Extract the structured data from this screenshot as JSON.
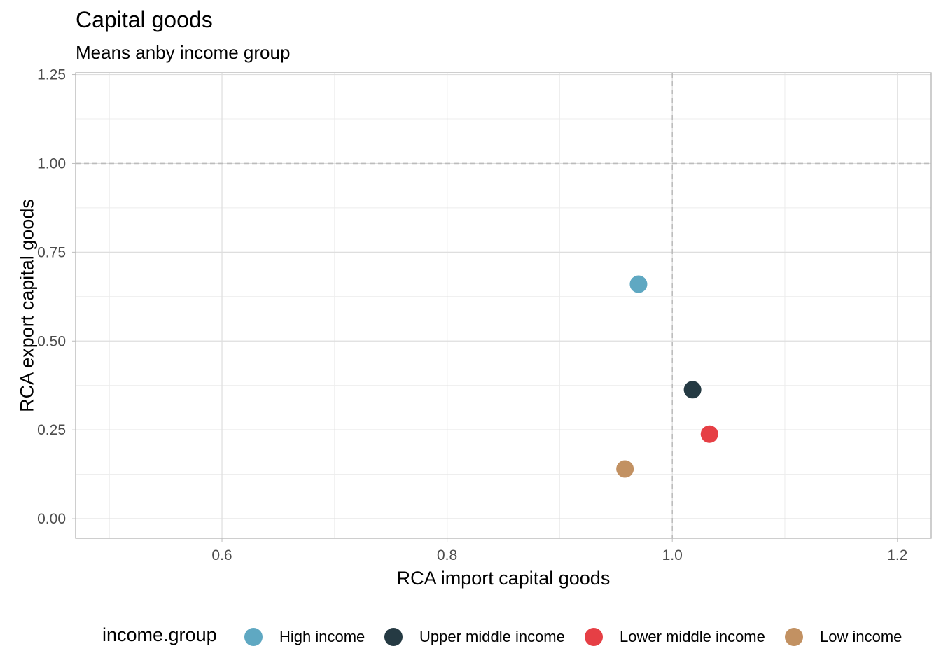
{
  "chart_data": {
    "type": "scatter",
    "title": "Capital goods",
    "subtitle": "Means anby income group",
    "xlabel": "RCA import capital goods",
    "ylabel": "RCA export capital goods",
    "xlim": [
      0.47,
      1.23
    ],
    "ylim": [
      -0.055,
      1.255
    ],
    "xticks": [
      0.6,
      0.8,
      1.0,
      1.2
    ],
    "xtick_labels": [
      "0.6",
      "0.8",
      "1.0",
      "1.2"
    ],
    "yticks": [
      0.0,
      0.25,
      0.5,
      0.75,
      1.0,
      1.25
    ],
    "ytick_labels": [
      "0.00",
      "0.25",
      "0.50",
      "0.75",
      "1.00",
      "1.25"
    ],
    "reference_lines": {
      "x": 1.0,
      "y": 1.0,
      "style": "dashed"
    },
    "grid": true,
    "legend": {
      "title": "income.group",
      "position": "bottom",
      "entries": [
        {
          "name": "High income",
          "color": "#5fa8c2"
        },
        {
          "name": "Upper middle income",
          "color": "#253a43"
        },
        {
          "name": "Lower middle income",
          "color": "#e63f45"
        },
        {
          "name": "Low income",
          "color": "#c29162"
        }
      ]
    },
    "series": [
      {
        "name": "High income",
        "color": "#5fa8c2",
        "x": [
          0.97
        ],
        "y": [
          0.66
        ]
      },
      {
        "name": "Upper middle income",
        "color": "#253a43",
        "x": [
          1.018
        ],
        "y": [
          0.363
        ]
      },
      {
        "name": "Lower middle income",
        "color": "#e63f45",
        "x": [
          1.033
        ],
        "y": [
          0.238
        ]
      },
      {
        "name": "Low income",
        "color": "#c29162",
        "x": [
          0.958
        ],
        "y": [
          0.14
        ]
      }
    ]
  }
}
